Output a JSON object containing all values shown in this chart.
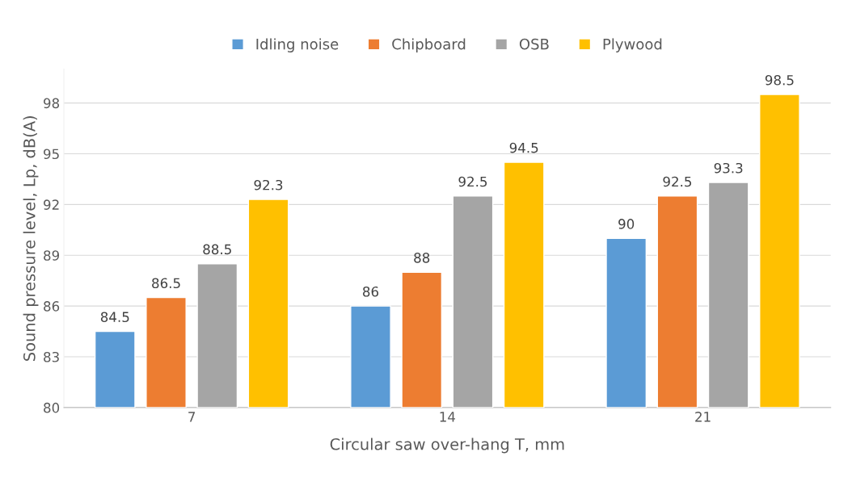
{
  "chart_data": {
    "type": "bar",
    "xlabel": "Circular saw over-hang T, mm",
    "ylabel": "Sound pressure level, Lp, dB(A)",
    "categories": [
      "7",
      "14",
      "21"
    ],
    "series": [
      {
        "name": "Idling noise",
        "color": "#5b9bd5",
        "values": [
          84.5,
          86,
          90
        ]
      },
      {
        "name": "Chipboard",
        "color": "#ed7d31",
        "values": [
          86.5,
          88,
          92.5
        ]
      },
      {
        "name": "OSB",
        "color": "#a5a5a5",
        "values": [
          88.5,
          92.5,
          93.3
        ]
      },
      {
        "name": "Plywood",
        "color": "#ffc000",
        "values": [
          92.3,
          94.5,
          98.5
        ]
      }
    ],
    "ylim": [
      80,
      100
    ],
    "yticks": [
      80,
      83,
      86,
      89,
      92,
      95,
      98
    ],
    "grid": "y",
    "legend": "top",
    "data_labels": true
  }
}
